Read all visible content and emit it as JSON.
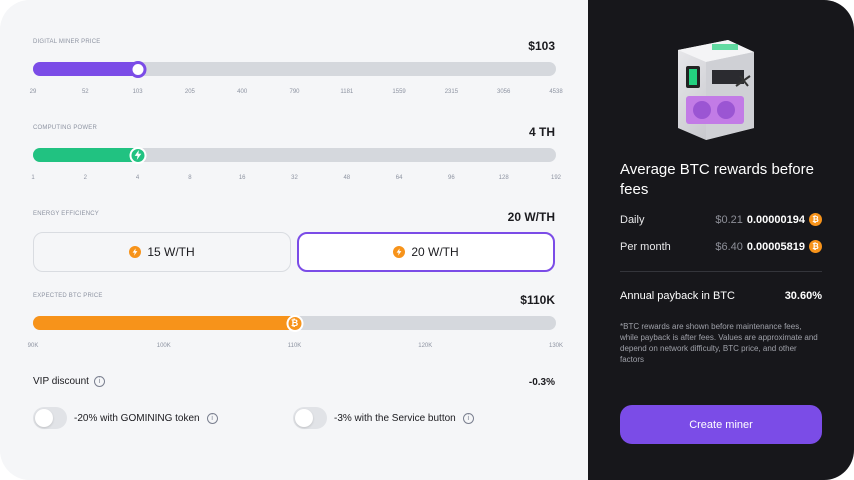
{
  "sections": {
    "miner_price": {
      "label": "DIGITAL MINER PRICE",
      "value": "$103",
      "fraction": 0.2,
      "fill_color": "#7b4ce7",
      "ticks": [
        "29",
        "52",
        "103",
        "205",
        "400",
        "790",
        "1181",
        "1559",
        "2315",
        "3056",
        "4538"
      ]
    },
    "computing_power": {
      "label": "COMPUTING POWER",
      "value": "4 TH",
      "fraction": 0.2,
      "fill_color": "#21c281",
      "ticks": [
        "1",
        "2",
        "4",
        "8",
        "16",
        "32",
        "48",
        "64",
        "96",
        "128",
        "192"
      ]
    },
    "energy_efficiency": {
      "label": "ENERGY EFFICIENCY",
      "value": "20 W/TH",
      "options": [
        {
          "label": "15 W/TH",
          "selected": false
        },
        {
          "label": "20 W/TH",
          "selected": true
        }
      ]
    },
    "btc_price": {
      "label": "EXPECTED BTC PRICE",
      "value": "$110K",
      "fraction": 0.5,
      "fill_color": "#f7931a",
      "ticks": [
        "90K",
        "100K",
        "110K",
        "120K",
        "130K"
      ]
    }
  },
  "vip": {
    "label": "VIP discount",
    "value": "-0.3%",
    "toggles": [
      {
        "label": "-20% with GOMINING token",
        "on": false
      },
      {
        "label": "-3% with the Service button",
        "on": false
      }
    ]
  },
  "rewards": {
    "title": "Average BTC rewards before fees",
    "rows": [
      {
        "label": "Daily",
        "usd": "$0.21",
        "btc": "0.00000194"
      },
      {
        "label": "Per month",
        "usd": "$6.40",
        "btc": "0.00005819"
      }
    ],
    "payback_label": "Annual payback in BTC",
    "payback_value": "30.60%",
    "note": "*BTC rewards are shown before maintenance fees, while payback is after fees. Values are approximate and depend on network difficulty, BTC price, and other factors",
    "cta_label": "Create miner"
  },
  "icons": {
    "thumb_price": "circle-knob-icon",
    "thumb_power": "lightning-icon",
    "thumb_btc": "bitcoin-icon",
    "efficiency": "lightning-icon",
    "info": "info-icon",
    "coin": "bitcoin-icon"
  }
}
